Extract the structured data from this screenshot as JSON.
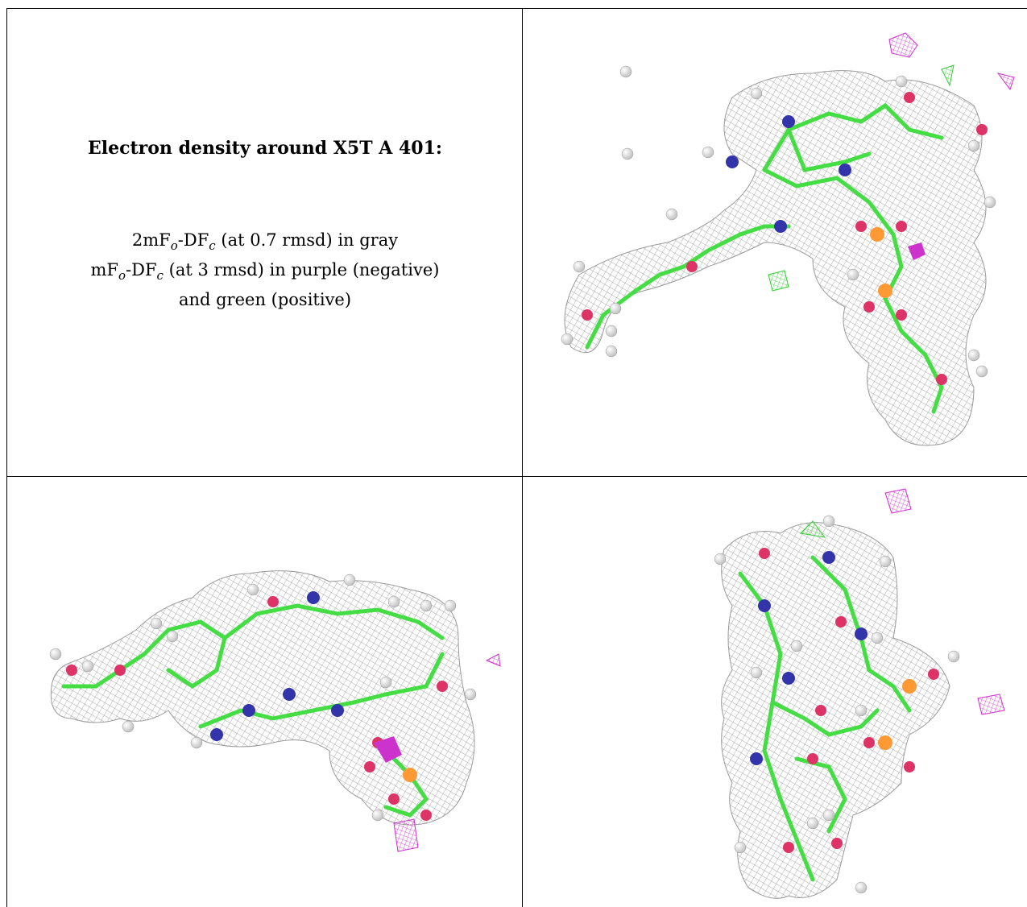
{
  "title": "Electron density around X5T A 401:",
  "legend": {
    "line1_prefix": "2mF",
    "line1_sub_o": "o",
    "line1_mid": "-DF",
    "line1_sub_c": "c",
    "line1_suffix": " (at 0.7 rmsd) in gray",
    "line2_prefix": "mF",
    "line2_sub_o": "o",
    "line2_mid": "-DF",
    "line2_sub_c": "c",
    "line2_suffix": " (at 3 rmsd) in purple (negative)",
    "line3": "and green (positive)"
  },
  "colors": {
    "mesh_gray": "#8c8c8c",
    "negative_purple": "#cc33cc",
    "positive_green": "#33cc33",
    "carbon_green": "#44dd44",
    "nitrogen_blue": "#3333aa",
    "oxygen_red": "#dd3366",
    "phosphorus_orange": "#ff9933",
    "hydrogen_white": "#e6e6e6"
  },
  "views": [
    "view-top-right",
    "view-bottom-left",
    "view-bottom-right"
  ]
}
